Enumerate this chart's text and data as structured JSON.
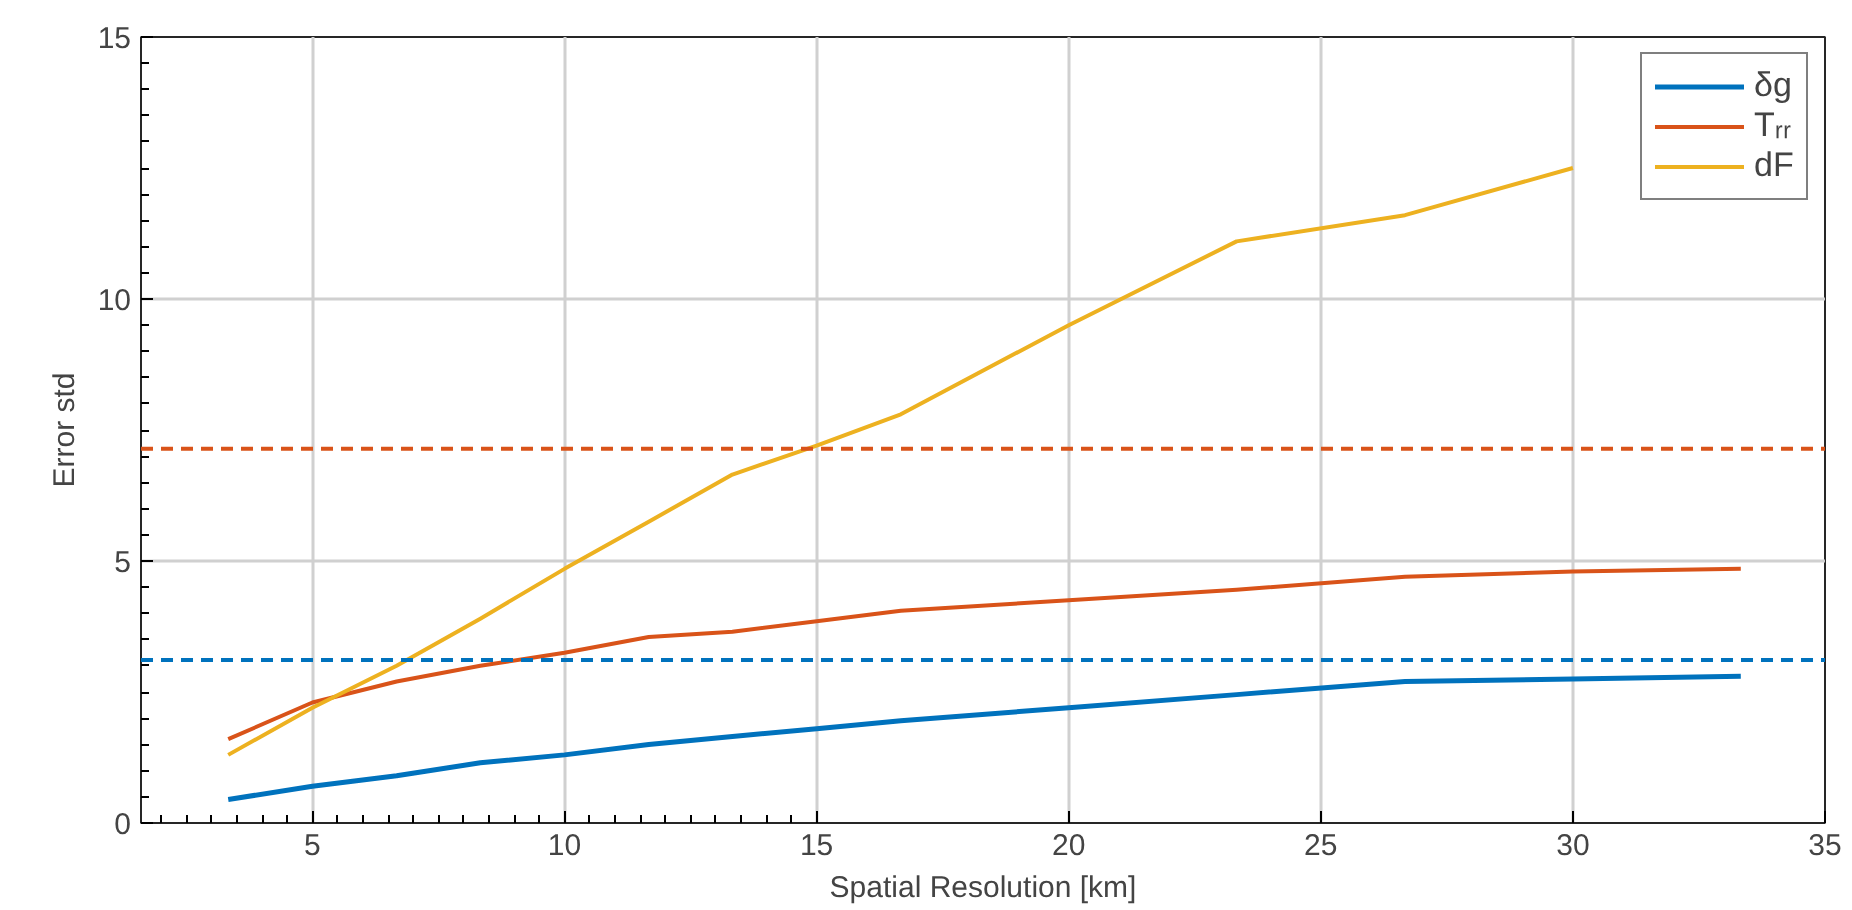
{
  "chart_data": {
    "type": "line",
    "xlabel": "Spatial Resolution [km]",
    "ylabel": "Error std",
    "x": [
      3.33,
      5,
      6.67,
      8.33,
      10,
      11.67,
      13.33,
      15,
      16.67,
      20,
      23.33,
      26.67,
      30,
      33.33
    ],
    "series": [
      {
        "name": "δg",
        "color": "#0072bd",
        "values": [
          0.45,
          0.7,
          0.9,
          1.15,
          1.3,
          1.5,
          1.65,
          1.8,
          1.95,
          2.2,
          2.45,
          2.7,
          2.75,
          2.8
        ]
      },
      {
        "name": "Tᵣᵣ",
        "color": "#d95319",
        "values": [
          1.6,
          2.3,
          2.7,
          3.0,
          3.25,
          3.55,
          3.65,
          3.85,
          4.05,
          4.25,
          4.45,
          4.7,
          4.8,
          4.85
        ]
      },
      {
        "name": "dF",
        "color": "#edb120",
        "values": [
          1.3,
          2.2,
          3.0,
          3.9,
          4.85,
          5.75,
          6.65,
          7.2,
          7.8,
          9.5,
          11.1,
          11.6,
          12.5,
          null
        ]
      }
    ],
    "ref_lines": [
      {
        "axis": "y",
        "value": 7.14,
        "color": "#d95319",
        "line_style": "dashed"
      },
      {
        "axis": "y",
        "value": 3.11,
        "color": "#0072bd",
        "line_style": "dashed"
      }
    ],
    "xlim": [
      1.6,
      35
    ],
    "ylim": [
      0,
      15
    ],
    "xticks": [
      5,
      10,
      15,
      20,
      25,
      30,
      35
    ],
    "yticks": [
      0,
      5,
      10,
      15
    ],
    "grid": true,
    "legend": "top right",
    "marker": "none",
    "line_style": "solid"
  }
}
